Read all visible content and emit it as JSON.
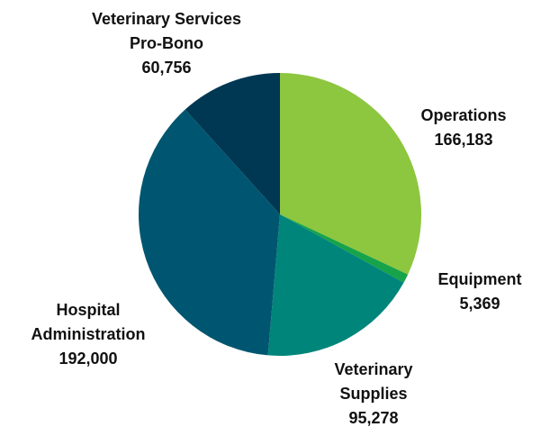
{
  "chart_data": {
    "type": "pie",
    "categories": [
      "Operations",
      "Equipment",
      "Veterinary Supplies",
      "Hospital Administration",
      "Veterinary Services Pro-Bono"
    ],
    "values": [
      166183,
      5369,
      95278,
      192000,
      60756
    ],
    "value_labels": [
      "166,183",
      "5,369",
      "95,278",
      "192,000",
      "60,756"
    ],
    "colors": [
      "#8dc63f",
      "#17a34a",
      "#00857a",
      "#005670",
      "#003752"
    ]
  }
}
